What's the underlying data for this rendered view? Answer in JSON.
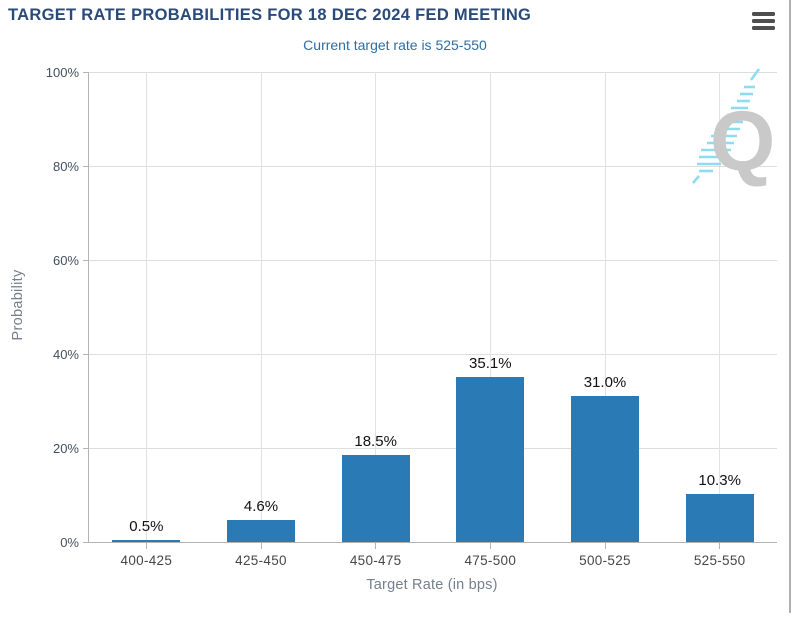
{
  "header": {
    "title": "TARGET RATE PROBABILITIES FOR 18 DEC 2024 FED MEETING",
    "subtitle": "Current target rate is 525-550",
    "menu_icon": "hamburger-menu"
  },
  "watermark": {
    "letter": "Q"
  },
  "colors": {
    "bar": "#2a7ab5",
    "title": "#2a4a7a",
    "subtitle": "#2e6da4",
    "grid": "#dedede",
    "axis": "#b3b3b3",
    "y_tick_label": "#43505f",
    "x_tick_label": "#474747",
    "axis_title": "#75808c",
    "data_label": "#111111",
    "menu_icon": "#4f4f4f",
    "watermark_gray": "#c9c9c9",
    "watermark_blue": "#8edcf2"
  },
  "chart_data": {
    "type": "bar",
    "title": "TARGET RATE PROBABILITIES FOR 18 DEC 2024 FED MEETING",
    "subtitle": "Current target rate is 525-550",
    "categories": [
      "400-425",
      "425-450",
      "450-475",
      "475-500",
      "500-525",
      "525-550"
    ],
    "values": [
      0.5,
      4.6,
      18.5,
      35.1,
      31.0,
      10.3
    ],
    "data_labels": [
      "0.5%",
      "4.6%",
      "18.5%",
      "35.1%",
      "31.0%",
      "10.3%"
    ],
    "xlabel": "Target Rate (in bps)",
    "ylabel": "Probability",
    "ylim": [
      0,
      100
    ],
    "yticks": [
      0,
      20,
      40,
      60,
      80,
      100
    ],
    "ytick_labels": [
      "0%",
      "20%",
      "40%",
      "60%",
      "80%",
      "100%"
    ],
    "grid": true,
    "legend": false,
    "bar_color": "#2a7ab5"
  }
}
